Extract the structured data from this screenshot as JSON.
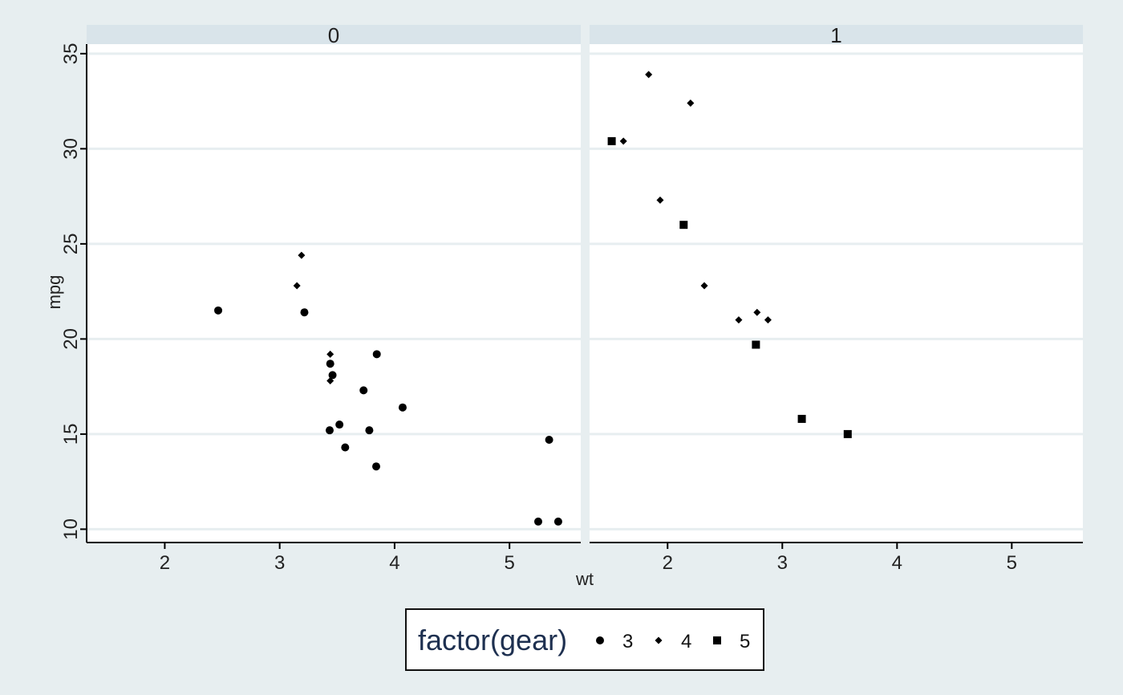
{
  "chart_data": {
    "type": "scatter",
    "title": "",
    "xlabel": "wt",
    "ylabel": "mpg",
    "xlim": [
      1.32,
      5.62
    ],
    "ylim": [
      9.3,
      35.5
    ],
    "x_ticks": [
      2,
      3,
      4,
      5
    ],
    "y_ticks": [
      10,
      15,
      20,
      25,
      30,
      35
    ],
    "grid": "horizontal",
    "legend": {
      "title": "factor(gear)",
      "position": "bottom",
      "entries": [
        {
          "label": "3",
          "shape": "circle"
        },
        {
          "label": "4",
          "shape": "diamond"
        },
        {
          "label": "5",
          "shape": "square"
        }
      ]
    },
    "panels": [
      {
        "strip_label": "0",
        "series": [
          {
            "name": "3",
            "shape": "circle",
            "points": [
              [
                2.465,
                21.5
              ],
              [
                3.215,
                21.4
              ],
              [
                3.44,
                18.7
              ],
              [
                3.46,
                18.1
              ],
              [
                3.57,
                14.3
              ],
              [
                4.07,
                16.4
              ],
              [
                3.73,
                17.3
              ],
              [
                3.78,
                15.2
              ],
              [
                5.25,
                10.4
              ],
              [
                5.424,
                10.4
              ],
              [
                5.345,
                14.7
              ],
              [
                3.52,
                15.5
              ],
              [
                3.435,
                15.2
              ],
              [
                3.84,
                13.3
              ],
              [
                3.845,
                19.2
              ]
            ]
          },
          {
            "name": "4",
            "shape": "diamond",
            "points": [
              [
                3.19,
                24.4
              ],
              [
                3.15,
                22.8
              ],
              [
                3.44,
                19.2
              ],
              [
                3.44,
                17.8
              ]
            ]
          }
        ]
      },
      {
        "strip_label": "1",
        "series": [
          {
            "name": "4",
            "shape": "diamond",
            "points": [
              [
                2.62,
                21.0
              ],
              [
                2.875,
                21.0
              ],
              [
                2.32,
                22.8
              ],
              [
                2.2,
                32.4
              ],
              [
                1.615,
                30.4
              ],
              [
                1.835,
                33.9
              ],
              [
                1.935,
                27.3
              ],
              [
                2.78,
                21.4
              ]
            ]
          },
          {
            "name": "5",
            "shape": "square",
            "points": [
              [
                2.14,
                26.0
              ],
              [
                1.513,
                30.4
              ],
              [
                3.17,
                15.8
              ],
              [
                2.77,
                19.7
              ],
              [
                3.57,
                15.0
              ]
            ]
          }
        ]
      }
    ]
  }
}
